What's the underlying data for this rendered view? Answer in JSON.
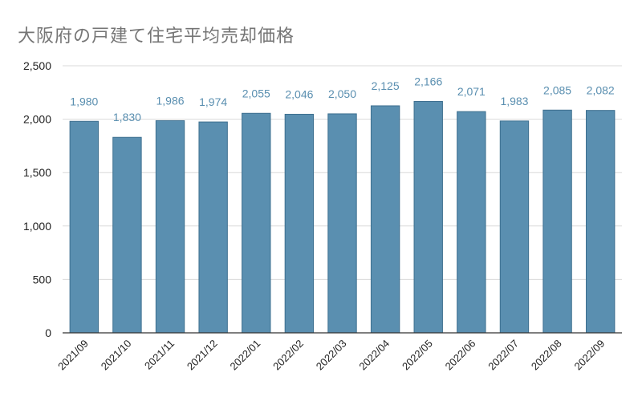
{
  "chart_data": {
    "type": "bar",
    "title": "大阪府の戸建て住宅平均売却価格",
    "xlabel": "",
    "ylabel": "",
    "categories": [
      "2021/09",
      "2021/10",
      "2021/11",
      "2021/12",
      "2022/01",
      "2022/02",
      "2022/03",
      "2022/04",
      "2022/05",
      "2022/06",
      "2022/07",
      "2022/08",
      "2022/09"
    ],
    "values": [
      1980,
      1830,
      1986,
      1974,
      2055,
      2046,
      2050,
      2125,
      2166,
      2071,
      1983,
      2085,
      2082
    ],
    "value_labels": [
      "1,980",
      "1,830",
      "1,986",
      "1,974",
      "2,055",
      "2,046",
      "2,050",
      "2,125",
      "2,166",
      "2,071",
      "1,983",
      "2,085",
      "2,082"
    ],
    "ylim": [
      0,
      2500
    ],
    "yticks": [
      0,
      500,
      1000,
      1500,
      2000,
      2500
    ],
    "ytick_labels": [
      "0",
      "500",
      "1,000",
      "1,500",
      "2,000",
      "2,500"
    ],
    "grid": true,
    "legend": "none",
    "colors": {
      "bar": "#5a8fb0",
      "bar_stroke": "#3d6f8f",
      "data_label": "#5a8fb0",
      "grid": "#d9d9d9",
      "axis": "#333333"
    }
  }
}
